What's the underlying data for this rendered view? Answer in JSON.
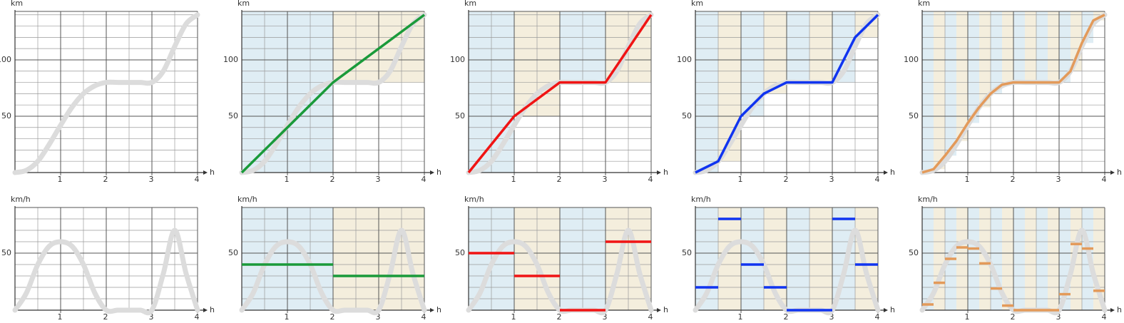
{
  "chart_data": [
    {
      "type": "line",
      "x_label": "h",
      "y_label": "km",
      "xlim": [
        0,
        4
      ],
      "ylim": [
        0,
        143
      ],
      "xticks": [
        1,
        2,
        3,
        4
      ],
      "yticks": [
        50,
        100
      ],
      "grid_step": {
        "x": 0.5,
        "y": 10
      },
      "reference": {
        "color": "#dcdcdc",
        "x": [
          0,
          0.25,
          0.5,
          0.75,
          1,
          1.25,
          1.5,
          1.75,
          2,
          2.25,
          2.5,
          2.75,
          3,
          3.25,
          3.5,
          3.75,
          4
        ],
        "values": [
          0,
          2,
          10,
          25,
          42,
          58,
          70,
          77,
          80,
          80,
          80,
          80,
          80,
          90,
          112,
          132,
          140
        ]
      }
    },
    {
      "type": "line",
      "x_label": "h",
      "y_label": "km",
      "xlim": [
        0,
        4
      ],
      "ylim": [
        0,
        143
      ],
      "xticks": [
        1,
        2,
        3,
        4
      ],
      "yticks": [
        50,
        100
      ],
      "grid_step": {
        "x": 0.5,
        "y": 10
      },
      "band_colors": [
        "#dfedf4",
        "#f4eedd"
      ],
      "reference": {
        "color": "#dcdcdc",
        "x": [
          0,
          0.25,
          0.5,
          0.75,
          1,
          1.25,
          1.5,
          1.75,
          2,
          2.25,
          2.5,
          2.75,
          3,
          3.25,
          3.5,
          3.75,
          4
        ],
        "values": [
          0,
          2,
          10,
          25,
          42,
          58,
          70,
          77,
          80,
          80,
          80,
          80,
          80,
          90,
          112,
          132,
          140
        ]
      },
      "series": [
        {
          "color": "#1a9a3a",
          "x": [
            0,
            2,
            4
          ],
          "values": [
            0,
            80,
            140
          ]
        }
      ]
    },
    {
      "type": "line",
      "x_label": "h",
      "y_label": "km",
      "xlim": [
        0,
        4
      ],
      "ylim": [
        0,
        143
      ],
      "xticks": [
        1,
        2,
        3,
        4
      ],
      "yticks": [
        50,
        100
      ],
      "grid_step": {
        "x": 0.5,
        "y": 10
      },
      "band_colors": [
        "#dfedf4",
        "#f4eedd"
      ],
      "reference": {
        "color": "#dcdcdc",
        "x": [
          0,
          0.25,
          0.5,
          0.75,
          1,
          1.25,
          1.5,
          1.75,
          2,
          2.25,
          2.5,
          2.75,
          3,
          3.25,
          3.5,
          3.75,
          4
        ],
        "values": [
          0,
          2,
          10,
          25,
          42,
          58,
          70,
          77,
          80,
          80,
          80,
          80,
          80,
          90,
          112,
          132,
          140
        ]
      },
      "series": [
        {
          "color": "#f01414",
          "x": [
            0,
            1,
            2,
            3,
            4
          ],
          "values": [
            0,
            50,
            80,
            80,
            140
          ]
        }
      ]
    },
    {
      "type": "line",
      "x_label": "h",
      "y_label": "km",
      "xlim": [
        0,
        4
      ],
      "ylim": [
        0,
        143
      ],
      "xticks": [
        1,
        2,
        3,
        4
      ],
      "yticks": [
        50,
        100
      ],
      "grid_step": {
        "x": 0.5,
        "y": 10
      },
      "band_colors": [
        "#dfedf4",
        "#f4eedd"
      ],
      "reference": {
        "color": "#dcdcdc",
        "x": [
          0,
          0.25,
          0.5,
          0.75,
          1,
          1.25,
          1.5,
          1.75,
          2,
          2.25,
          2.5,
          2.75,
          3,
          3.25,
          3.5,
          3.75,
          4
        ],
        "values": [
          0,
          2,
          10,
          25,
          42,
          58,
          70,
          77,
          80,
          80,
          80,
          80,
          80,
          90,
          112,
          132,
          140
        ]
      },
      "series": [
        {
          "color": "#1034f0",
          "x": [
            0,
            0.5,
            1,
            1.5,
            2,
            2.5,
            3,
            3.5,
            4
          ],
          "values": [
            0,
            10,
            50,
            70,
            80,
            80,
            80,
            120,
            140
          ]
        }
      ]
    },
    {
      "type": "line",
      "x_label": "h",
      "y_label": "km",
      "xlim": [
        0,
        4
      ],
      "ylim": [
        0,
        143
      ],
      "xticks": [
        1,
        2,
        3,
        4
      ],
      "yticks": [
        50,
        100
      ],
      "grid_step": {
        "x": 0.5,
        "y": 10
      },
      "band_colors": [
        "#dfedf4",
        "#f4eedd"
      ],
      "reference": {
        "color": "#dcdcdc",
        "x": [
          0,
          0.25,
          0.5,
          0.75,
          1,
          1.25,
          1.5,
          1.75,
          2,
          2.25,
          2.5,
          2.75,
          3,
          3.25,
          3.5,
          3.75,
          4
        ],
        "values": [
          0,
          2,
          10,
          25,
          42,
          58,
          70,
          77,
          80,
          80,
          80,
          80,
          80,
          90,
          112,
          132,
          140
        ]
      },
      "series": [
        {
          "color": "#e39a5a",
          "x": [
            0,
            0.25,
            0.5,
            0.75,
            1,
            1.25,
            1.5,
            1.75,
            2,
            2.25,
            2.5,
            2.75,
            3,
            3.25,
            3.5,
            3.75,
            4
          ],
          "values": [
            0,
            3,
            15,
            28,
            44,
            58,
            70,
            78,
            80,
            80,
            80,
            80,
            80,
            90,
            115,
            135,
            140
          ]
        }
      ]
    },
    {
      "type": "step",
      "x_label": "h",
      "y_label": "km/h",
      "xlim": [
        0,
        4
      ],
      "ylim": [
        0,
        90
      ],
      "xticks": [
        1,
        2,
        3,
        4
      ],
      "yticks": [
        50
      ],
      "grid_step": {
        "x": 0.5,
        "y": 10
      },
      "reference": {
        "color": "#dcdcdc",
        "x": [
          0,
          0.25,
          0.5,
          0.75,
          1,
          1.25,
          1.5,
          1.75,
          2,
          2.25,
          2.5,
          2.75,
          3,
          3.25,
          3.5,
          3.75,
          4
        ],
        "values": [
          0,
          15,
          40,
          56,
          60,
          56,
          40,
          15,
          0,
          0,
          0,
          0,
          0,
          32,
          70,
          32,
          0
        ]
      }
    },
    {
      "type": "step",
      "x_label": "h",
      "y_label": "km/h",
      "xlim": [
        0,
        4
      ],
      "ylim": [
        0,
        90
      ],
      "xticks": [
        1,
        2,
        3,
        4
      ],
      "yticks": [
        50
      ],
      "grid_step": {
        "x": 0.5,
        "y": 10
      },
      "band_colors": [
        "#dfedf4",
        "#f4eedd"
      ],
      "reference": {
        "color": "#dcdcdc",
        "x": [
          0,
          0.25,
          0.5,
          0.75,
          1,
          1.25,
          1.5,
          1.75,
          2,
          2.25,
          2.5,
          2.75,
          3,
          3.25,
          3.5,
          3.75,
          4
        ],
        "values": [
          0,
          15,
          40,
          56,
          60,
          56,
          40,
          15,
          0,
          0,
          0,
          0,
          0,
          32,
          70,
          32,
          0
        ]
      },
      "segments": {
        "color": "#1a9a3a",
        "bins": [
          0,
          2,
          4
        ],
        "values": [
          40,
          30
        ]
      }
    },
    {
      "type": "step",
      "x_label": "h",
      "y_label": "km/h",
      "xlim": [
        0,
        4
      ],
      "ylim": [
        0,
        90
      ],
      "xticks": [
        1,
        2,
        3,
        4
      ],
      "yticks": [
        50
      ],
      "grid_step": {
        "x": 0.5,
        "y": 10
      },
      "band_colors": [
        "#dfedf4",
        "#f4eedd"
      ],
      "reference": {
        "color": "#dcdcdc",
        "x": [
          0,
          0.25,
          0.5,
          0.75,
          1,
          1.25,
          1.5,
          1.75,
          2,
          2.25,
          2.5,
          2.75,
          3,
          3.25,
          3.5,
          3.75,
          4
        ],
        "values": [
          0,
          15,
          40,
          56,
          60,
          56,
          40,
          15,
          0,
          0,
          0,
          0,
          0,
          32,
          70,
          32,
          0
        ]
      },
      "segments": {
        "color": "#f01414",
        "bins": [
          0,
          1,
          2,
          3,
          4
        ],
        "values": [
          50,
          30,
          0,
          60
        ]
      }
    },
    {
      "type": "step",
      "x_label": "h",
      "y_label": "km/h",
      "xlim": [
        0,
        4
      ],
      "ylim": [
        0,
        90
      ],
      "xticks": [
        1,
        2,
        3,
        4
      ],
      "yticks": [
        50
      ],
      "grid_step": {
        "x": 0.5,
        "y": 10
      },
      "band_colors": [
        "#dfedf4",
        "#f4eedd"
      ],
      "reference": {
        "color": "#dcdcdc",
        "x": [
          0,
          0.25,
          0.5,
          0.75,
          1,
          1.25,
          1.5,
          1.75,
          2,
          2.25,
          2.5,
          2.75,
          3,
          3.25,
          3.5,
          3.75,
          4
        ],
        "values": [
          0,
          15,
          40,
          56,
          60,
          56,
          40,
          15,
          0,
          0,
          0,
          0,
          0,
          32,
          70,
          32,
          0
        ]
      },
      "segments": {
        "color": "#1034f0",
        "bins": [
          0,
          0.5,
          1,
          1.5,
          2,
          2.5,
          3,
          3.5,
          4
        ],
        "values": [
          20,
          80,
          40,
          20,
          0,
          0,
          80,
          40
        ]
      }
    },
    {
      "type": "step",
      "x_label": "h",
      "y_label": "km/h",
      "xlim": [
        0,
        4
      ],
      "ylim": [
        0,
        90
      ],
      "xticks": [
        1,
        2,
        3,
        4
      ],
      "yticks": [
        50
      ],
      "grid_step": {
        "x": 0.5,
        "y": 10
      },
      "band_colors": [
        "#dfedf4",
        "#f4eedd"
      ],
      "reference": {
        "color": "#dcdcdc",
        "x": [
          0,
          0.25,
          0.5,
          0.75,
          1,
          1.25,
          1.5,
          1.75,
          2,
          2.25,
          2.5,
          2.75,
          3,
          3.25,
          3.5,
          3.75,
          4
        ],
        "values": [
          0,
          15,
          40,
          56,
          60,
          56,
          40,
          15,
          0,
          0,
          0,
          0,
          0,
          32,
          70,
          32,
          0
        ]
      },
      "segments": {
        "color": "#e39a5a",
        "bins": [
          0,
          0.25,
          0.5,
          0.75,
          1,
          1.25,
          1.5,
          1.75,
          2,
          2.25,
          2.5,
          2.75,
          3,
          3.25,
          3.5,
          3.75,
          4
        ],
        "values": [
          5,
          24,
          45,
          55,
          54,
          41,
          19,
          4,
          0,
          0,
          0,
          0,
          14,
          58,
          54,
          17
        ]
      }
    }
  ]
}
